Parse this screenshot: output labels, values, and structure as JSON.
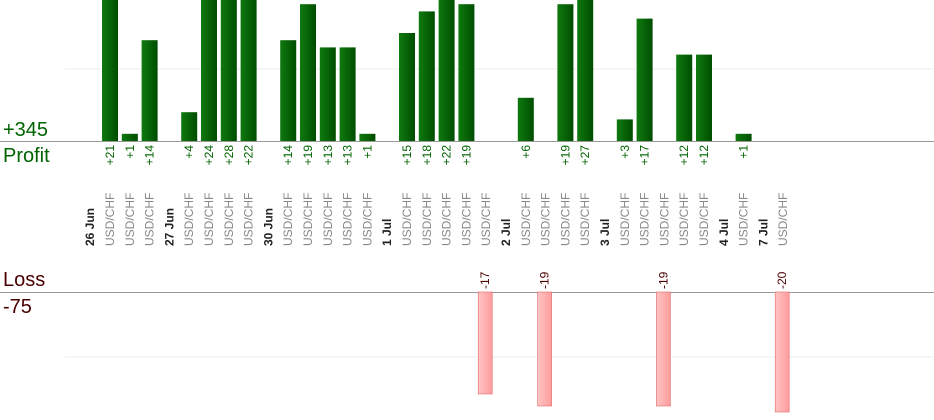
{
  "profit_total": "+345",
  "profit_label": "Profit",
  "loss_label": "Loss",
  "loss_total": "-75",
  "colors": {
    "profit_dark": "#004d00",
    "profit_light": "#0f7a0f",
    "profit_text": "#006400",
    "loss_fill": "#ffb3b3",
    "loss_edge": "#e06a6a",
    "loss_text": "#4a0000",
    "date_text": "#222222",
    "pair_text": "#888888",
    "axis": "#999999",
    "grid": "#eeeeee"
  },
  "chart_data": {
    "type": "bar",
    "pair": "USD/CHF",
    "trades": [
      {
        "date": "26 Jun",
        "value": 21
      },
      {
        "date": "26 Jun",
        "value": 1
      },
      {
        "date": "26 Jun",
        "value": 14
      },
      {
        "date": "27 Jun",
        "value": 4
      },
      {
        "date": "27 Jun",
        "value": 24
      },
      {
        "date": "27 Jun",
        "value": 28
      },
      {
        "date": "27 Jun",
        "value": 22
      },
      {
        "date": "30 Jun",
        "value": 14
      },
      {
        "date": "30 Jun",
        "value": 19
      },
      {
        "date": "30 Jun",
        "value": 13
      },
      {
        "date": "30 Jun",
        "value": 13
      },
      {
        "date": "30 Jun",
        "value": 1
      },
      {
        "date": "1 Jul",
        "value": 15
      },
      {
        "date": "1 Jul",
        "value": 18
      },
      {
        "date": "1 Jul",
        "value": 22
      },
      {
        "date": "1 Jul",
        "value": 19
      },
      {
        "date": "1 Jul",
        "value": -17
      },
      {
        "date": "2 Jul",
        "value": 6
      },
      {
        "date": "2 Jul",
        "value": -19
      },
      {
        "date": "2 Jul",
        "value": 19
      },
      {
        "date": "2 Jul",
        "value": 27
      },
      {
        "date": "3 Jul",
        "value": 3
      },
      {
        "date": "3 Jul",
        "value": 17
      },
      {
        "date": "3 Jul",
        "value": -19
      },
      {
        "date": "3 Jul",
        "value": 12
      },
      {
        "date": "3 Jul",
        "value": 12
      },
      {
        "date": "4 Jul",
        "value": 1
      },
      {
        "date": "7 Jul",
        "value": -20
      }
    ],
    "dates": [
      "26 Jun",
      "27 Jun",
      "30 Jun",
      "1 Jul",
      "2 Jul",
      "3 Jul",
      "4 Jul",
      "7 Jul"
    ],
    "value_labels": [
      "+21",
      "+1",
      "+14",
      "+4",
      "+24",
      "+28",
      "+22",
      "+14",
      "+19",
      "+13",
      "+13",
      "+1",
      "+15",
      "+18",
      "+22",
      "+19",
      "-17",
      "+6",
      "-19",
      "+19",
      "+27",
      "+3",
      "+17",
      "-19",
      "+12",
      "+12",
      "+1",
      "-20"
    ]
  }
}
